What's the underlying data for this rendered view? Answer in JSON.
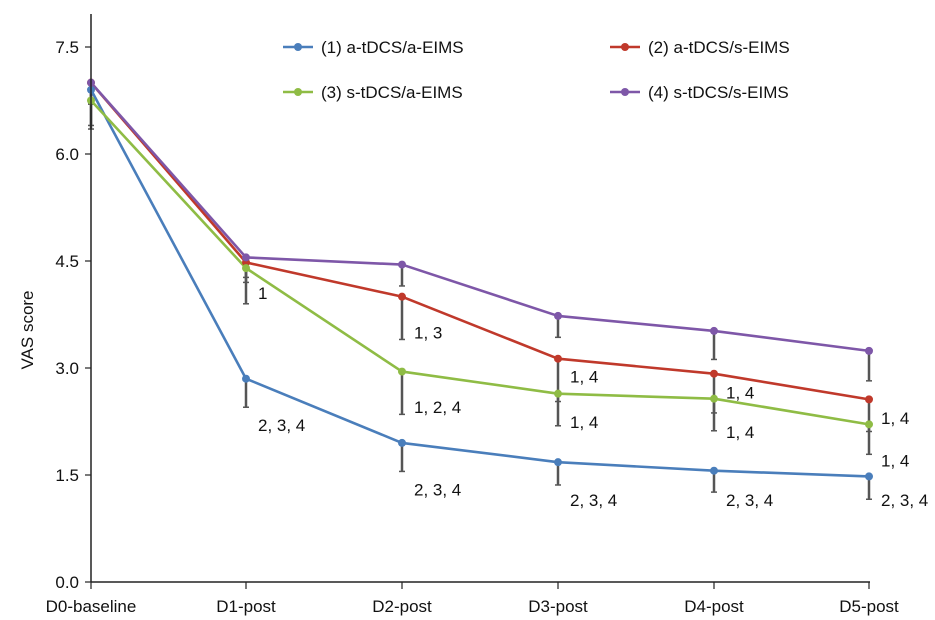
{
  "chart_data": {
    "type": "line",
    "title": "",
    "xlabel": "",
    "ylabel": "VAS score",
    "ylim": [
      0,
      7.5
    ],
    "yticks": [
      "0.0",
      "1.5",
      "3.0",
      "4.5",
      "6.0",
      "7.5"
    ],
    "ytick_values": [
      0,
      1.5,
      3.0,
      4.5,
      6.0,
      7.5
    ],
    "categories": [
      "D0-baseline",
      "D1-post",
      "D2-post",
      "D3-post",
      "D4-post",
      "D5-post"
    ],
    "grid": false,
    "legend_position": "top",
    "series": [
      {
        "name": "(1) a-tDCS/a-EIMS",
        "color": "#4a7ebb",
        "values": [
          6.9,
          2.85,
          1.95,
          1.68,
          1.56,
          1.48
        ],
        "error": [
          0.5,
          0.4,
          0.4,
          0.32,
          0.3,
          0.32
        ]
      },
      {
        "name": "(2) a-tDCS/s-EIMS",
        "color": "#c0392b",
        "values": [
          7.0,
          4.48,
          4.0,
          3.13,
          2.92,
          2.56
        ],
        "error": [
          0.3,
          0.28,
          0.6,
          0.6,
          0.55,
          0.45
        ]
      },
      {
        "name": "(3) s-tDCS/a-EIMS",
        "color": "#8fbc45",
        "values": [
          6.75,
          4.4,
          2.95,
          2.64,
          2.57,
          2.21
        ],
        "error": [
          0.4,
          0.5,
          0.6,
          0.45,
          0.45,
          0.42
        ]
      },
      {
        "name": "(4) s-tDCS/s-EIMS",
        "color": "#7e57a8",
        "values": [
          7.0,
          4.55,
          4.45,
          3.73,
          3.52,
          3.24
        ],
        "error": [
          0.3,
          0.28,
          0.3,
          0.3,
          0.4,
          0.42
        ]
      }
    ],
    "annotations": [
      {
        "text": "1",
        "category": "D1-post",
        "y": 4.05
      },
      {
        "text": "2, 3, 4",
        "category": "D1-post",
        "y": 2.2
      },
      {
        "text": "1, 3",
        "category": "D2-post",
        "y": 3.5
      },
      {
        "text": "1, 2, 4",
        "category": "D2-post",
        "y": 2.45
      },
      {
        "text": "2, 3, 4",
        "category": "D2-post",
        "y": 1.3
      },
      {
        "text": "1, 4",
        "category": "D3-post",
        "y": 2.88
      },
      {
        "text": "1, 4",
        "category": "D3-post",
        "y": 2.24
      },
      {
        "text": "2, 3, 4",
        "category": "D3-post",
        "y": 1.15
      },
      {
        "text": "1, 4",
        "category": "D4-post",
        "y": 2.66
      },
      {
        "text": "1, 4",
        "category": "D4-post",
        "y": 2.1
      },
      {
        "text": "2, 3, 4",
        "category": "D4-post",
        "y": 1.15
      },
      {
        "text": "1, 4",
        "category": "D5-post",
        "y": 2.3
      },
      {
        "text": "1, 4",
        "category": "D5-post",
        "y": 1.7
      },
      {
        "text": "2, 3, 4",
        "category": "D5-post",
        "y": 1.15
      }
    ]
  }
}
